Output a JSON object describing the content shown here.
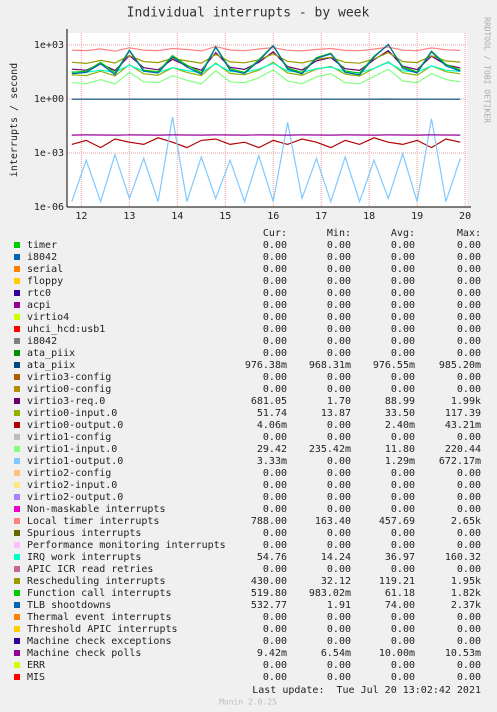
{
  "chart_data": {
    "type": "line",
    "title": "Individual interrupts - by week",
    "y_label": "interrupts / second",
    "side_text": "RRDTOOL / TOBI OETIKER",
    "log_scale": true,
    "grid": true,
    "ylim": [
      1e-06,
      4642
    ],
    "yticks": [
      {
        "value": 1000,
        "label": "1e+03"
      },
      {
        "value": 1,
        "label": "1e+00"
      },
      {
        "value": 0.001,
        "label": "1e-03"
      },
      {
        "value": 1e-06,
        "label": "1e-06"
      }
    ],
    "xlim": [
      11.7,
      20.04
    ],
    "xticks": [
      12,
      13,
      14,
      15,
      16,
      17,
      18,
      19,
      20
    ],
    "x": [
      11.8,
      12.1,
      12.4,
      12.7,
      13.0,
      13.3,
      13.6,
      13.9,
      14.2,
      14.5,
      14.8,
      15.1,
      15.4,
      15.7,
      16.0,
      16.3,
      16.6,
      16.9,
      17.2,
      17.5,
      17.8,
      18.1,
      18.4,
      18.7,
      19.0,
      19.3,
      19.6,
      19.9
    ],
    "legend_headers": [
      "Cur:",
      "Min:",
      "Avg:",
      "Max:"
    ],
    "series": [
      {
        "name": "timer",
        "color": "#00CC00",
        "cur": "0.00",
        "min": "0.00",
        "avg": "0.00",
        "max": "0.00"
      },
      {
        "name": "i8042",
        "color": "#0066B3",
        "cur": "0.00",
        "min": "0.00",
        "avg": "0.00",
        "max": "0.00"
      },
      {
        "name": "serial",
        "color": "#FF8000",
        "cur": "0.00",
        "min": "0.00",
        "avg": "0.00",
        "max": "0.00"
      },
      {
        "name": "floppy",
        "color": "#FFCC00",
        "cur": "0.00",
        "min": "0.00",
        "avg": "0.00",
        "max": "0.00"
      },
      {
        "name": "rtc0",
        "color": "#330099",
        "cur": "0.00",
        "min": "0.00",
        "avg": "0.00",
        "max": "0.00"
      },
      {
        "name": "acpi",
        "color": "#990099",
        "cur": "0.00",
        "min": "0.00",
        "avg": "0.00",
        "max": "0.00"
      },
      {
        "name": "virtio4",
        "color": "#CCFF00",
        "cur": "0.00",
        "min": "0.00",
        "avg": "0.00",
        "max": "0.00"
      },
      {
        "name": "uhci_hcd:usb1",
        "color": "#FF0000",
        "cur": "0.00",
        "min": "0.00",
        "avg": "0.00",
        "max": "0.00"
      },
      {
        "name": "i8042",
        "color": "#808080",
        "cur": "0.00",
        "min": "0.00",
        "avg": "0.00",
        "max": "0.00"
      },
      {
        "name": "ata_piix",
        "color": "#008F00",
        "cur": "0.00",
        "min": "0.00",
        "avg": "0.00",
        "max": "0.00"
      },
      {
        "name": "ata_piix",
        "color": "#00487D",
        "cur": "976.38m",
        "min": "968.31m",
        "avg": "976.55m",
        "max": "985.20m",
        "values": [
          0.976,
          0.977,
          0.975,
          0.976,
          0.978,
          0.976,
          0.975,
          0.977,
          0.976,
          0.974,
          0.979,
          0.976,
          0.975,
          0.977,
          0.98,
          0.976,
          0.975,
          0.976,
          0.978,
          0.976,
          0.975,
          0.977,
          0.982,
          0.976,
          0.975,
          0.978,
          0.976,
          0.976
        ]
      },
      {
        "name": "virtio3-config",
        "color": "#B35A00",
        "cur": "0.00",
        "min": "0.00",
        "avg": "0.00",
        "max": "0.00"
      },
      {
        "name": "virtio0-config",
        "color": "#B38F00",
        "cur": "0.00",
        "min": "0.00",
        "avg": "0.00",
        "max": "0.00"
      },
      {
        "name": "virtio3-req.0",
        "color": "#6B006B",
        "cur": "681.05",
        "min": "1.70",
        "avg": "88.99",
        "max": "1.99k",
        "values": [
          45,
          40,
          90,
          38,
          260,
          55,
          42,
          160,
          70,
          40,
          380,
          58,
          44,
          110,
          420,
          62,
          41,
          130,
          200,
          48,
          39,
          150,
          480,
          66,
          43,
          240,
          80,
          52
        ]
      },
      {
        "name": "virtio0-input.0",
        "color": "#8FB300",
        "cur": "51.74",
        "min": "13.87",
        "avg": "33.50",
        "max": "117.39",
        "values": [
          22,
          20,
          35,
          19,
          80,
          25,
          21,
          55,
          30,
          20,
          100,
          26,
          22,
          40,
          110,
          28,
          21,
          45,
          65,
          24,
          19,
          50,
          117,
          29,
          21,
          70,
          33,
          25
        ]
      },
      {
        "name": "virtio0-output.0",
        "color": "#B30000",
        "cur": "4.06m",
        "min": "0.00",
        "avg": "2.40m",
        "max": "43.21m",
        "values": [
          0.003,
          0.005,
          0.002,
          0.006,
          0.004,
          0.003,
          0.007,
          0.004,
          0.002,
          0.005,
          0.006,
          0.003,
          0.004,
          0.002,
          0.005,
          0.003,
          0.006,
          0.004,
          0.002,
          0.005,
          0.003,
          0.007,
          0.004,
          0.003,
          0.005,
          0.002,
          0.006,
          0.004
        ]
      },
      {
        "name": "virtio1-config",
        "color": "#BEBEBE",
        "cur": "0.00",
        "min": "0.00",
        "avg": "0.00",
        "max": "0.00"
      },
      {
        "name": "virtio1-input.0",
        "color": "#80FF80",
        "cur": "29.42",
        "min": "235.42m",
        "avg": "11.80",
        "max": "220.44",
        "values": [
          8,
          7,
          12,
          7,
          30,
          9,
          8,
          20,
          11,
          7,
          38,
          9,
          8,
          15,
          42,
          10,
          7,
          17,
          25,
          8,
          7,
          18,
          45,
          10,
          8,
          26,
          12,
          9
        ]
      },
      {
        "name": "virtio1-output.0",
        "color": "#80C9FF",
        "cur": "3.33m",
        "min": "0.00",
        "avg": "1.29m",
        "max": "672.17m",
        "values": [
          2e-06,
          0.0004,
          2e-06,
          0.0008,
          3e-06,
          0.0005,
          2e-06,
          0.1,
          2e-06,
          0.0006,
          3e-06,
          0.0004,
          2e-06,
          0.0007,
          2e-06,
          0.05,
          3e-06,
          0.0005,
          2e-06,
          0.0006,
          2e-06,
          0.0004,
          3e-06,
          0.0009,
          2e-06,
          0.08,
          2e-06,
          0.0005
        ]
      },
      {
        "name": "virtio2-config",
        "color": "#FFC080",
        "cur": "0.00",
        "min": "0.00",
        "avg": "0.00",
        "max": "0.00"
      },
      {
        "name": "virtio2-input.0",
        "color": "#FFE680",
        "cur": "0.00",
        "min": "0.00",
        "avg": "0.00",
        "max": "0.00"
      },
      {
        "name": "virtio2-output.0",
        "color": "#AA80FF",
        "cur": "0.00",
        "min": "0.00",
        "avg": "0.00",
        "max": "0.00"
      },
      {
        "name": "Non-maskable interrupts",
        "color": "#EE00CC",
        "cur": "0.00",
        "min": "0.00",
        "avg": "0.00",
        "max": "0.00"
      },
      {
        "name": "Local timer interrupts",
        "color": "#FF8080",
        "cur": "788.00",
        "min": "163.40",
        "avg": "457.69",
        "max": "2.65k",
        "values": [
          520,
          480,
          610,
          450,
          700,
          520,
          490,
          640,
          560,
          470,
          820,
          530,
          480,
          600,
          720,
          510,
          470,
          560,
          640,
          500,
          480,
          590,
          760,
          520,
          480,
          690,
          540,
          500
        ]
      },
      {
        "name": "Spurious interrupts",
        "color": "#666600",
        "cur": "0.00",
        "min": "0.00",
        "avg": "0.00",
        "max": "0.00"
      },
      {
        "name": "Performance monitoring interrupts",
        "color": "#FFBFFF",
        "cur": "0.00",
        "min": "0.00",
        "avg": "0.00",
        "max": "0.00"
      },
      {
        "name": "IRQ work interrupts",
        "color": "#00FFCC",
        "cur": "54.76",
        "min": "14.24",
        "avg": "36.97",
        "max": "160.32",
        "values": [
          32,
          30,
          40,
          31,
          75,
          35,
          30,
          55,
          38,
          29,
          90,
          34,
          31,
          45,
          95,
          36,
          30,
          48,
          60,
          33,
          29,
          50,
          110,
          37,
          31,
          70,
          40,
          34
        ]
      },
      {
        "name": "APIC ICR read retries",
        "color": "#CC6699",
        "cur": "0.00",
        "min": "0.00",
        "avg": "0.00",
        "max": "0.00"
      },
      {
        "name": "Rescheduling interrupts",
        "color": "#999900",
        "cur": "430.00",
        "min": "32.12",
        "avg": "119.21",
        "max": "1.95k",
        "values": [
          110,
          95,
          140,
          100,
          260,
          120,
          105,
          180,
          130,
          98,
          300,
          115,
          102,
          150,
          320,
          125,
          100,
          160,
          210,
          110,
          98,
          170,
          380,
          120,
          105,
          250,
          130,
          112
        ]
      },
      {
        "name": "Function call interrupts",
        "color": "#00CC00",
        "cur": "519.80",
        "min": "983.02m",
        "avg": "61.18",
        "max": "1.82k",
        "values": [
          30,
          35,
          110,
          28,
          520,
          40,
          33,
          260,
          75,
          29,
          800,
          48,
          30,
          150,
          950,
          52,
          30,
          200,
          350,
          36,
          27,
          240,
          1050,
          60,
          32,
          460,
          85,
          40
        ]
      },
      {
        "name": "TLB shootdowns",
        "color": "#0066B3",
        "cur": "532.77",
        "min": "1.91",
        "avg": "74.00",
        "max": "2.37k",
        "values": [
          25,
          30,
          90,
          22,
          480,
          35,
          28,
          220,
          60,
          24,
          750,
          40,
          26,
          130,
          900,
          45,
          25,
          180,
          320,
          30,
          22,
          210,
          1100,
          50,
          28,
          420,
          70,
          35
        ]
      },
      {
        "name": "Thermal event interrupts",
        "color": "#FF8000",
        "cur": "0.00",
        "min": "0.00",
        "avg": "0.00",
        "max": "0.00"
      },
      {
        "name": "Threshold APIC interrupts",
        "color": "#FFCC00",
        "cur": "0.00",
        "min": "0.00",
        "avg": "0.00",
        "max": "0.00"
      },
      {
        "name": "Machine check exceptions",
        "color": "#330099",
        "cur": "0.00",
        "min": "0.00",
        "avg": "0.00",
        "max": "0.00"
      },
      {
        "name": "Machine check polls",
        "color": "#990099",
        "cur": "9.42m",
        "min": "6.54m",
        "avg": "10.00m",
        "max": "10.53m",
        "values": [
          0.0099,
          0.0101,
          0.01,
          0.0099,
          0.0101,
          0.01,
          0.0099,
          0.0101,
          0.01,
          0.0099,
          0.0101,
          0.01,
          0.0099,
          0.0101,
          0.01,
          0.0099,
          0.0101,
          0.01,
          0.0099,
          0.0101,
          0.01,
          0.0099,
          0.0101,
          0.01,
          0.0099,
          0.0101,
          0.01,
          0.0099
        ]
      },
      {
        "name": "ERR",
        "color": "#CCFF00",
        "cur": "0.00",
        "min": "0.00",
        "avg": "0.00",
        "max": "0.00"
      },
      {
        "name": "MIS",
        "color": "#FF0000",
        "cur": "0.00",
        "min": "0.00",
        "avg": "0.00",
        "max": "0.00"
      }
    ],
    "last_update": "Last update:  Tue Jul 20 13:02:42 2021",
    "footer": "Munin 2.0.25"
  }
}
